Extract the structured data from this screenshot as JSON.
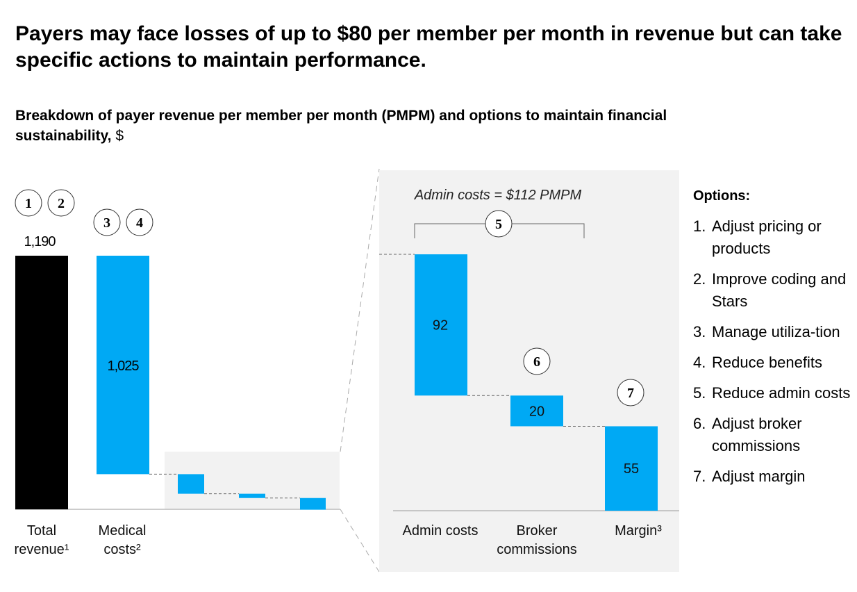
{
  "title": "Payers may face losses of up to $80 per member per month in revenue but can take specific actions to maintain performance.",
  "subtitle": "Breakdown of payer revenue per member per month (PMPM) and options to maintain financial sustainability,",
  "subtitle_unit": "$",
  "chart_data": [
    {
      "type": "bar",
      "subtype": "waterfall",
      "categories": [
        "Total revenue¹",
        "Medical costs²"
      ],
      "values": [
        1190,
        1025
      ],
      "value_labels": [
        "1,190",
        "1,025"
      ],
      "small_unlabeled_steps": [
        92,
        20,
        55
      ],
      "markers": [
        [
          "1",
          "2"
        ],
        [
          "3",
          "4"
        ]
      ]
    },
    {
      "type": "bar",
      "subtype": "waterfall",
      "categories": [
        "Admin costs",
        "Broker commissions",
        "Margin³"
      ],
      "values": [
        92,
        20,
        55
      ],
      "annotation": "Admin costs = $112 PMPM",
      "bracket_marker": "5",
      "markers": [
        "",
        "6",
        "7"
      ]
    }
  ],
  "colors": {
    "total": "#000000",
    "step": "#00a9f4",
    "panel": "#f2f2f2"
  },
  "options": {
    "heading": "Options:",
    "items": [
      {
        "num": "1.",
        "text": "Adjust pricing or products"
      },
      {
        "num": "2.",
        "text": "Improve coding and Stars"
      },
      {
        "num": "3.",
        "text": "Manage utiliza-tion"
      },
      {
        "num": "4.",
        "text": "Reduce benefits"
      },
      {
        "num": "5.",
        "text": "Reduce admin costs"
      },
      {
        "num": "6.",
        "text": "Adjust broker commissions"
      },
      {
        "num": "7.",
        "text": "Adjust margin"
      }
    ]
  }
}
